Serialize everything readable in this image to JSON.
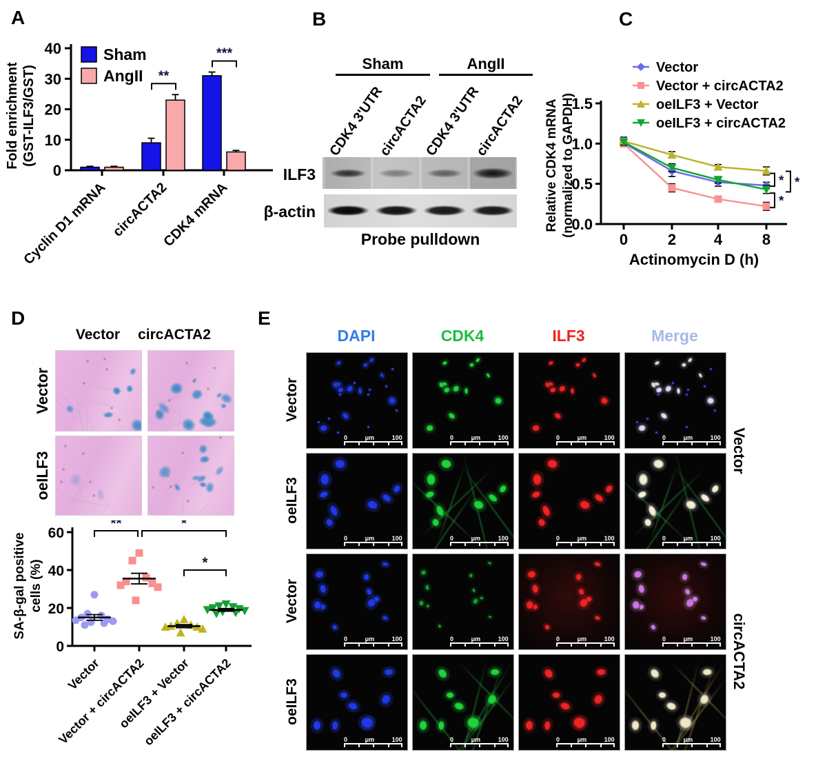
{
  "panels": {
    "A": {
      "label": "A"
    },
    "B": {
      "label": "B",
      "groups": [
        "Sham",
        "AngII"
      ],
      "lanes": [
        "CDK4 3'UTR",
        "circACTA2",
        "CDK4 3'UTR",
        "circACTA2"
      ],
      "rows": [
        "ILF3",
        "β-actin"
      ],
      "caption": "Probe pulldown",
      "ilf3_band_intensity": [
        0.85,
        0.4,
        0.55,
        1.0
      ],
      "actin_band_intensity": [
        1.0,
        0.95,
        0.92,
        0.92
      ]
    },
    "C": {
      "label": "C"
    },
    "D": {
      "label": "D",
      "image_col_headers": [
        "Vector",
        "circACTA2"
      ],
      "image_row_labels": [
        "Vector",
        "oeILF3"
      ]
    },
    "E": {
      "label": "E",
      "col_headers": [
        {
          "text": "DAPI",
          "color": "#2F7FE8"
        },
        {
          "text": "CDK4",
          "color": "#1CBE3C"
        },
        {
          "text": "ILF3",
          "color": "#EE2222"
        },
        {
          "text": "Merge",
          "color": "#A4B8E8"
        }
      ],
      "row_labels": [
        "Vector",
        "oeILF3",
        "Vector",
        "oeILF3"
      ],
      "right_labels": [
        "Vector",
        "circACTA2"
      ],
      "scale_bar": {
        "start": "0",
        "unit": "μm",
        "end": "100"
      }
    }
  },
  "chart_data": [
    {
      "panel": "A",
      "type": "bar",
      "ylabel_lines": [
        "Fold enrichment",
        "(GST-ILF3/GST)"
      ],
      "ylim": [
        0,
        40
      ],
      "yticks": [
        0,
        10,
        20,
        30,
        40
      ],
      "categories": [
        "Cyclin D1 mRNA",
        "circACTA2",
        "CDK4 mRNA"
      ],
      "series": [
        {
          "name": "Sham",
          "color": "#1414E8",
          "values": [
            1,
            9,
            31
          ],
          "errors": [
            0.3,
            1.5,
            1.2
          ]
        },
        {
          "name": "AngII",
          "color": "#F9A9A9",
          "values": [
            1,
            23,
            6
          ],
          "errors": [
            0.3,
            1.8,
            0.5
          ]
        }
      ],
      "significance": [
        {
          "category": 1,
          "label": "**"
        },
        {
          "category": 2,
          "label": "***"
        }
      ]
    },
    {
      "panel": "C",
      "type": "line",
      "ylabel_lines": [
        "Relative CDK4 mRNA",
        "(normalized to GAPDH)"
      ],
      "xlabel": "Actinomycin D (h)",
      "yticks": [
        "0.0",
        "0.5",
        "1.0",
        "1.5"
      ],
      "xticks": [
        "0",
        "2",
        "4",
        "8"
      ],
      "x_hours": [
        0,
        2,
        4,
        8
      ],
      "series": [
        {
          "name": "Vector",
          "color": "#6A6AF2",
          "marker": "diamond",
          "values": [
            1.01,
            0.66,
            0.52,
            0.48
          ],
          "errors": [
            0.03,
            0.07,
            0.05,
            0.04
          ]
        },
        {
          "name": "Vector + circACTA2",
          "color": "#FA9292",
          "marker": "square",
          "values": [
            1.0,
            0.45,
            0.31,
            0.22
          ],
          "errors": [
            0.04,
            0.05,
            0.03,
            0.05
          ]
        },
        {
          "name": "oeILF3 + Vector",
          "color": "#BDB32A",
          "marker": "tri-up",
          "values": [
            1.03,
            0.86,
            0.71,
            0.66
          ],
          "errors": [
            0.05,
            0.04,
            0.03,
            0.05
          ]
        },
        {
          "name": "oeILF3 + circACTA2",
          "color": "#12A435",
          "marker": "tri-down",
          "values": [
            1.02,
            0.7,
            0.55,
            0.43
          ],
          "errors": [
            0.04,
            0.05,
            0.04,
            0.05
          ]
        }
      ],
      "significance": [
        {
          "x": 334,
          "v1": 0.63,
          "v2": 0.47,
          "label": "*"
        },
        {
          "x": 357,
          "v1": 0.655,
          "v2": 0.4,
          "label": "*"
        },
        {
          "x": 334,
          "v1": 0.385,
          "v2": 0.205,
          "label": "*"
        }
      ]
    },
    {
      "panel": "D",
      "type": "scatter",
      "ylabel_lines": [
        "SA-β-gal positive",
        "cells (%)"
      ],
      "ylim": [
        0,
        60
      ],
      "yticks": [
        0,
        20,
        40,
        60
      ],
      "categories": [
        "Vector",
        "Vector + circACTA2",
        "oeILF3 + Vector",
        "oeILF3 + circACTA2"
      ],
      "groups": [
        {
          "name": "Vector",
          "color": "#9B9BF2",
          "marker": "circle",
          "points": [
            27,
            17,
            16,
            15,
            14,
            13.5,
            13,
            12.5,
            12,
            11
          ],
          "mean": 15,
          "sem": 1.5
        },
        {
          "name": "Vector + circACTA2",
          "color": "#F98F8F",
          "marker": "square",
          "points": [
            49,
            45,
            36,
            34,
            33,
            32,
            31,
            24
          ],
          "mean": 35.5,
          "sem": 2.8
        },
        {
          "name": "oeILF3 + Vector",
          "color": "#BFB41E",
          "marker": "tri-up",
          "points": [
            14,
            12,
            11,
            10.5,
            10,
            10,
            9,
            7
          ],
          "mean": 10.4,
          "sem": 0.8
        },
        {
          "name": "oeILF3 + circACTA2",
          "color": "#15A034",
          "marker": "tri-down",
          "points": [
            22,
            21,
            20.5,
            20,
            19.5,
            19,
            18.5,
            18,
            17.5,
            17
          ],
          "mean": 19,
          "sem": 0.7
        }
      ],
      "significance": [
        {
          "from": 0,
          "to": 1,
          "label": "**"
        },
        {
          "from": 1,
          "to": 3,
          "label": "*"
        },
        {
          "from": 2,
          "to": 3,
          "label": "*"
        }
      ]
    }
  ]
}
